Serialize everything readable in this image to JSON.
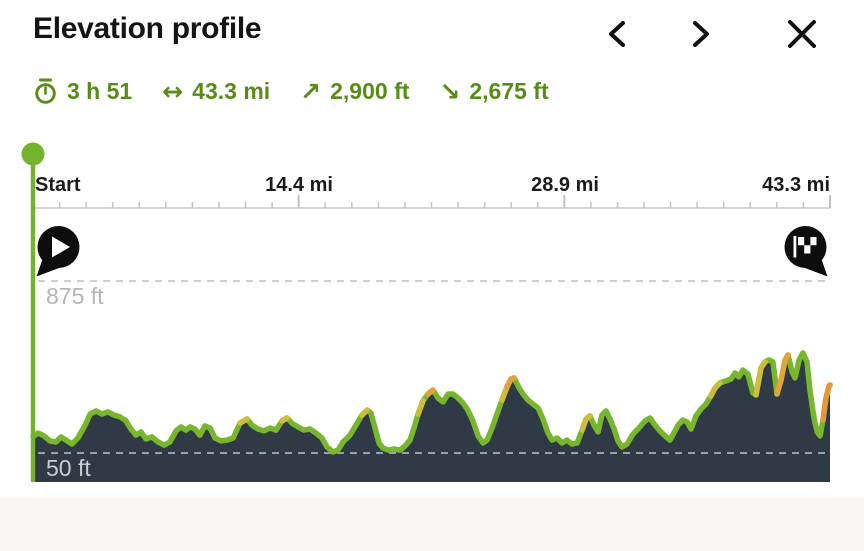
{
  "header": {
    "title": "Elevation profile"
  },
  "nav": {
    "prev_icon": "chevron-left",
    "next_icon": "chevron-right",
    "close_icon": "close"
  },
  "stats": {
    "duration": {
      "icon": "stopwatch",
      "value": "3 h 51"
    },
    "distance": {
      "icon": "left-right-arrow",
      "glyph": "↔",
      "value": "43.3 mi"
    },
    "ascent": {
      "icon": "up-right-arrow",
      "glyph": "↗",
      "value": "2,900 ft"
    },
    "descent": {
      "icon": "down-right-arrow",
      "glyph": "↘",
      "value": "2,675 ft"
    }
  },
  "axis": {
    "labels": [
      {
        "text": "Start"
      },
      {
        "text": "14.4 mi"
      },
      {
        "text": "28.9 mi"
      },
      {
        "text": "43.3 mi"
      }
    ]
  },
  "gridlines": [
    {
      "label": "875 ft",
      "ft": 875
    },
    {
      "label": "50 ft",
      "ft": 50
    }
  ],
  "colors": {
    "accent_text_green": "#578c18",
    "scrubber_green": "#74b32c",
    "line_green": "#78b62e",
    "area_navy": "#2f3a46",
    "grid_gray": "#cfcfcf",
    "grid_on_dark": "#97a1ac",
    "label_gray": "#b5b5b5",
    "label_on_dark": "#c9ced4",
    "surface_yellow": "#cdbd3a",
    "surface_orange": "#e2a33c",
    "marker_black": "#0d0d0d"
  },
  "chart_data": {
    "type": "area",
    "title": "Elevation profile",
    "x_unit": "mi",
    "y_unit": "ft",
    "x_max": 43.3,
    "x_ticks_mi": [
      0,
      14.43,
      28.87,
      43.3
    ],
    "gridlines_ft": [
      875,
      50
    ],
    "cursor_mi": 0,
    "line_color": "#78b62e",
    "fill_color": "#2f3a46",
    "points": [
      [
        0,
        127
      ],
      [
        0.27,
        146
      ],
      [
        0.6,
        132
      ],
      [
        0.92,
        108
      ],
      [
        1.25,
        103
      ],
      [
        1.52,
        127
      ],
      [
        1.79,
        112
      ],
      [
        2.12,
        93
      ],
      [
        2.44,
        122
      ],
      [
        2.83,
        184
      ],
      [
        3.1,
        237
      ],
      [
        3.42,
        252
      ],
      [
        3.75,
        237
      ],
      [
        4.07,
        247
      ],
      [
        4.4,
        232
      ],
      [
        4.73,
        223
      ],
      [
        5.05,
        204
      ],
      [
        5.32,
        165
      ],
      [
        5.6,
        136
      ],
      [
        5.87,
        151
      ],
      [
        6.14,
        117
      ],
      [
        6.46,
        127
      ],
      [
        6.79,
        103
      ],
      [
        7.12,
        88
      ],
      [
        7.44,
        103
      ],
      [
        7.77,
        156
      ],
      [
        8.04,
        175
      ],
      [
        8.31,
        160
      ],
      [
        8.53,
        175
      ],
      [
        8.8,
        165
      ],
      [
        9.07,
        136
      ],
      [
        9.34,
        180
      ],
      [
        9.62,
        170
      ],
      [
        9.89,
        122
      ],
      [
        10.21,
        108
      ],
      [
        10.54,
        112
      ],
      [
        10.87,
        122
      ],
      [
        11.25,
        194
      ],
      [
        11.63,
        213
      ],
      [
        11.9,
        184
      ],
      [
        12.22,
        165
      ],
      [
        12.55,
        156
      ],
      [
        12.88,
        170
      ],
      [
        13.2,
        160
      ],
      [
        13.53,
        204
      ],
      [
        13.8,
        218
      ],
      [
        14.12,
        189
      ],
      [
        14.4,
        175
      ],
      [
        14.72,
        160
      ],
      [
        15.05,
        165
      ],
      [
        15.37,
        146
      ],
      [
        15.7,
        122
      ],
      [
        15.97,
        79
      ],
      [
        16.3,
        55
      ],
      [
        16.57,
        64
      ],
      [
        16.84,
        103
      ],
      [
        17.22,
        136
      ],
      [
        17.55,
        184
      ],
      [
        17.87,
        232
      ],
      [
        18.15,
        256
      ],
      [
        18.36,
        242
      ],
      [
        18.58,
        170
      ],
      [
        18.8,
        98
      ],
      [
        19.01,
        74
      ],
      [
        19.29,
        64
      ],
      [
        19.61,
        69
      ],
      [
        19.94,
        64
      ],
      [
        20.21,
        84
      ],
      [
        20.48,
        112
      ],
      [
        20.7,
        170
      ],
      [
        20.92,
        237
      ],
      [
        21.19,
        300
      ],
      [
        21.46,
        333
      ],
      [
        21.73,
        352
      ],
      [
        22,
        314
      ],
      [
        22.28,
        295
      ],
      [
        22.55,
        333
      ],
      [
        22.82,
        333
      ],
      [
        23.09,
        314
      ],
      [
        23.36,
        290
      ],
      [
        23.63,
        256
      ],
      [
        23.9,
        204
      ],
      [
        24.18,
        132
      ],
      [
        24.45,
        98
      ],
      [
        24.67,
        112
      ],
      [
        24.94,
        170
      ],
      [
        25.21,
        237
      ],
      [
        25.48,
        304
      ],
      [
        25.75,
        367
      ],
      [
        25.97,
        405
      ],
      [
        26.13,
        410
      ],
      [
        26.35,
        372
      ],
      [
        26.62,
        333
      ],
      [
        26.89,
        304
      ],
      [
        27.16,
        285
      ],
      [
        27.44,
        266
      ],
      [
        27.71,
        213
      ],
      [
        27.98,
        146
      ],
      [
        28.2,
        112
      ],
      [
        28.47,
        122
      ],
      [
        28.74,
        98
      ],
      [
        29.01,
        112
      ],
      [
        29.28,
        93
      ],
      [
        29.56,
        98
      ],
      [
        29.83,
        160
      ],
      [
        30.05,
        213
      ],
      [
        30.26,
        228
      ],
      [
        30.48,
        184
      ],
      [
        30.7,
        151
      ],
      [
        30.91,
        232
      ],
      [
        31.13,
        252
      ],
      [
        31.35,
        213
      ],
      [
        31.57,
        165
      ],
      [
        31.78,
        108
      ],
      [
        32,
        79
      ],
      [
        32.27,
        93
      ],
      [
        32.6,
        141
      ],
      [
        32.92,
        170
      ],
      [
        33.25,
        204
      ],
      [
        33.52,
        218
      ],
      [
        33.79,
        184
      ],
      [
        34.06,
        156
      ],
      [
        34.34,
        132
      ],
      [
        34.61,
        112
      ],
      [
        34.82,
        146
      ],
      [
        35.04,
        184
      ],
      [
        35.31,
        208
      ],
      [
        35.53,
        199
      ],
      [
        35.75,
        165
      ],
      [
        36.02,
        228
      ],
      [
        36.29,
        261
      ],
      [
        36.56,
        285
      ],
      [
        36.83,
        324
      ],
      [
        37.05,
        362
      ],
      [
        37.32,
        386
      ],
      [
        37.65,
        396
      ],
      [
        37.92,
        405
      ],
      [
        38.14,
        434
      ],
      [
        38.35,
        415
      ],
      [
        38.57,
        448
      ],
      [
        38.84,
        429
      ],
      [
        39.11,
        338
      ],
      [
        39.28,
        328
      ],
      [
        39.55,
        458
      ],
      [
        39.77,
        487
      ],
      [
        39.98,
        496
      ],
      [
        40.2,
        487
      ],
      [
        40.42,
        333
      ],
      [
        40.64,
        400
      ],
      [
        40.86,
        496
      ],
      [
        41.02,
        520
      ],
      [
        41.24,
        439
      ],
      [
        41.4,
        410
      ],
      [
        41.62,
        496
      ],
      [
        41.83,
        530
      ],
      [
        42.05,
        487
      ],
      [
        42.21,
        352
      ],
      [
        42.43,
        218
      ],
      [
        42.6,
        151
      ],
      [
        42.76,
        132
      ],
      [
        42.92,
        208
      ],
      [
        43.08,
        314
      ],
      [
        43.25,
        372
      ],
      [
        43.3,
        376
      ]
    ],
    "surface_segments": [
      {
        "from_mi": 11.2,
        "to_mi": 11.75,
        "color": "#cdbd3a"
      },
      {
        "from_mi": 13.45,
        "to_mi": 13.95,
        "color": "#cdbd3a"
      },
      {
        "from_mi": 17.7,
        "to_mi": 18.25,
        "color": "#cdbd3a"
      },
      {
        "from_mi": 20.85,
        "to_mi": 21.35,
        "color": "#cdbd3a"
      },
      {
        "from_mi": 21.3,
        "to_mi": 21.8,
        "color": "#e2a33c"
      },
      {
        "from_mi": 25.35,
        "to_mi": 25.8,
        "color": "#cdbd3a"
      },
      {
        "from_mi": 25.75,
        "to_mi": 26.15,
        "color": "#e2a33c"
      },
      {
        "from_mi": 29.8,
        "to_mi": 30.3,
        "color": "#cdbd3a"
      },
      {
        "from_mi": 36.6,
        "to_mi": 37.6,
        "color": "#cdbd3a"
      },
      {
        "from_mi": 39.25,
        "to_mi": 39.85,
        "color": "#cdbd3a"
      },
      {
        "from_mi": 40.42,
        "to_mi": 41.05,
        "color": "#e2a33c"
      },
      {
        "from_mi": 42.85,
        "to_mi": 43.3,
        "color": "#e8963a"
      }
    ]
  }
}
